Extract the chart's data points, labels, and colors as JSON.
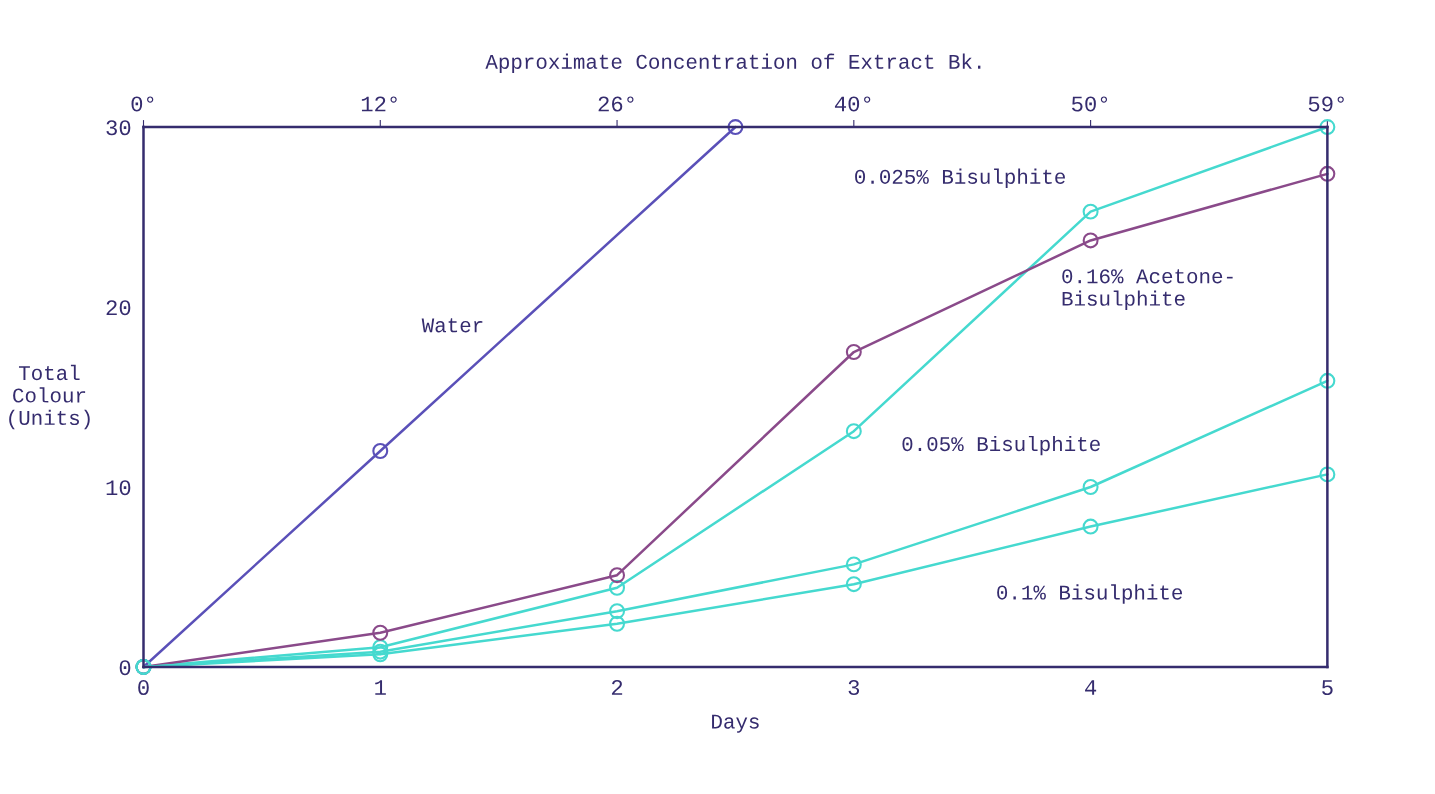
{
  "chart_data": {
    "type": "line",
    "title": "Approximate Concentration of Extract Bk.",
    "xlabel": "Days",
    "ylabel": "Total\nColour\n(Units)",
    "xlim": [
      0,
      5
    ],
    "xticks": [
      0,
      1,
      2,
      3,
      4,
      5
    ],
    "annotations": [
      "0°",
      "12°",
      "26°",
      "40°",
      "50°",
      "59°"
    ],
    "ylim": [
      0,
      30
    ],
    "yticks": [
      0,
      10,
      20,
      30
    ],
    "grid": false,
    "marker": "circle",
    "line_style": "solid",
    "series": [
      {
        "name": "Water",
        "color": "#5a50b8",
        "x": [
          0,
          1,
          2.5
        ],
        "values": [
          0,
          12.0,
          30
        ]
      },
      {
        "name": "0.025% Bisulphite",
        "color": "#45d9cf",
        "x": [
          0,
          1,
          2,
          3,
          4,
          5
        ],
        "values": [
          0,
          1.1,
          4.4,
          13.1,
          25.3,
          30
        ]
      },
      {
        "name": "0.16% Acetone-\nBisulphite",
        "color": "#8a4a8a",
        "x": [
          0,
          1,
          2,
          3,
          4,
          5
        ],
        "values": [
          0,
          1.9,
          5.1,
          17.5,
          23.7,
          27.4
        ]
      },
      {
        "name": "0.05% Bisulphite",
        "color": "#45d9cf",
        "x": [
          0,
          1,
          2,
          3,
          4,
          5
        ],
        "values": [
          0,
          0.85,
          3.1,
          5.7,
          10.0,
          15.9
        ]
      },
      {
        "name": "0.1% Bisulphite",
        "color": "#45d9cf",
        "x": [
          0,
          1,
          2,
          3,
          4,
          5
        ],
        "values": [
          0,
          0.7,
          2.4,
          4.6,
          7.8,
          10.7
        ]
      }
    ]
  }
}
